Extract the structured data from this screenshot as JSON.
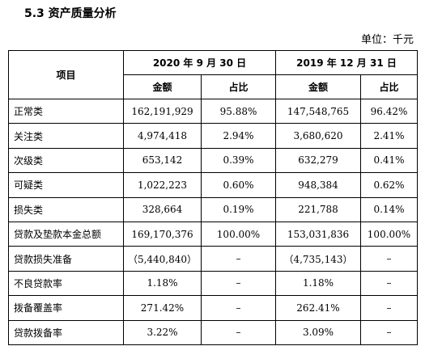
{
  "header": {
    "title": "5.3 资产质量分析",
    "unit": "单位：千元"
  },
  "table": {
    "columns": [
      "项目",
      "2020 年 9 月 30 日",
      "2019 年 12 月 31 日"
    ],
    "subcolumns": [
      "金额",
      "占比",
      "金额",
      "占比"
    ],
    "rows": [
      [
        "正常类",
        "162,191,929",
        "95.88%",
        "147,548,765",
        "96.42%"
      ],
      [
        "关注类",
        "4,974,418",
        "2.94%",
        "3,680,620",
        "2.41%"
      ],
      [
        "次级类",
        "653,142",
        "0.39%",
        "632,279",
        "0.41%"
      ],
      [
        "可疑类",
        "1,022,223",
        "0.60%",
        "948,384",
        "0.62%"
      ],
      [
        "损失类",
        "328,664",
        "0.19%",
        "221,788",
        "0.14%"
      ],
      [
        "贷款及垫款本金总额",
        "169,170,376",
        "100.00%",
        "153,031,836",
        "100.00%"
      ],
      [
        "贷款损失准备",
        "（5,440,840）",
        "–",
        "（4,735,143）",
        "–"
      ],
      [
        "不良贷款率",
        "1.18%",
        "–",
        "1.18%",
        "–"
      ],
      [
        "拨备覆盖率",
        "271.42%",
        "–",
        "262.41%",
        "–"
      ],
      [
        "贷款拨备率",
        "3.22%",
        "–",
        "3.09%",
        "–"
      ]
    ]
  }
}
